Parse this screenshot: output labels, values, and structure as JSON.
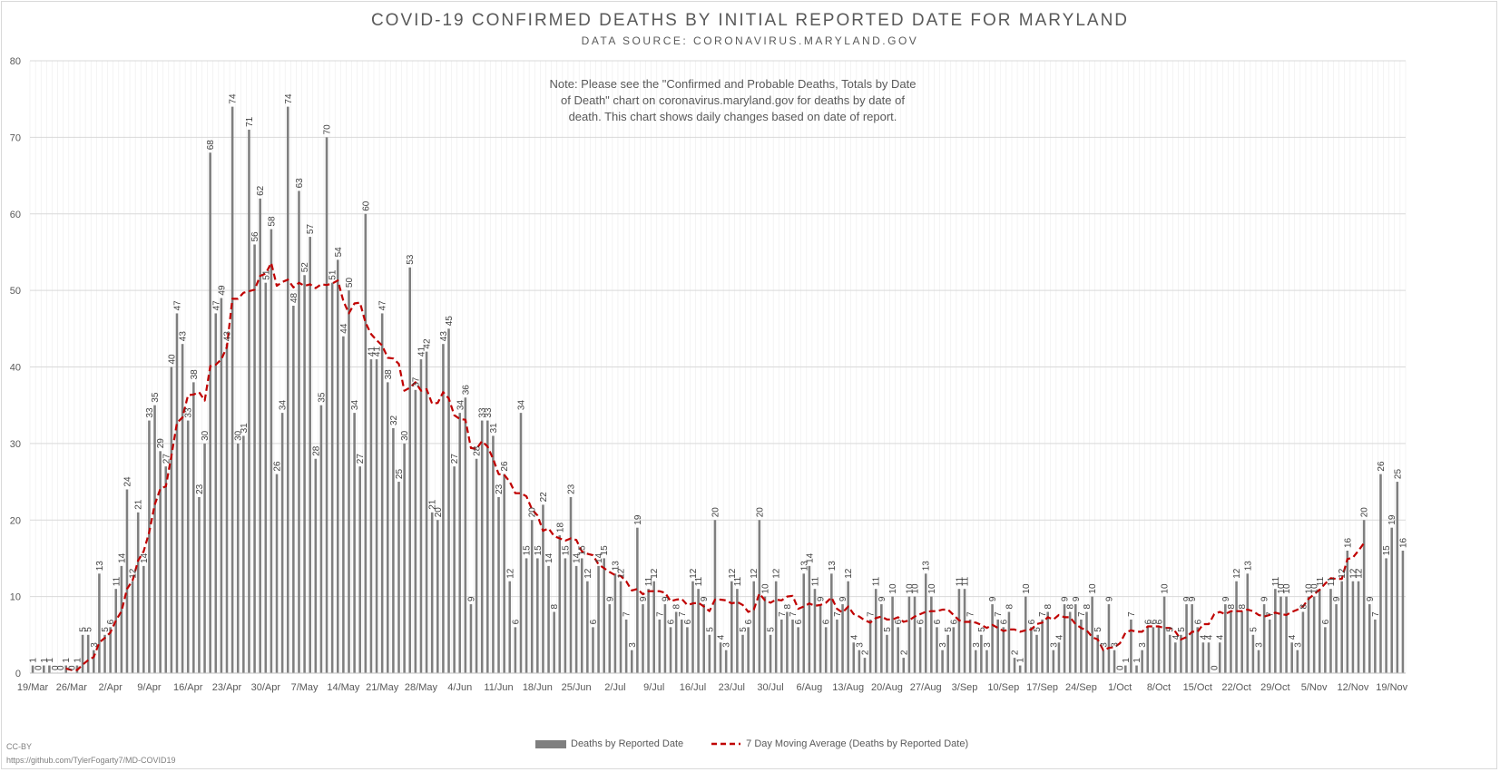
{
  "title": "COVID-19 CONFIRMED DEATHS BY INITIAL REPORTED DATE FOR MARYLAND",
  "subtitle": "DATA SOURCE: CORONAVIRUS.MARYLAND.GOV",
  "note": "Note: Please see the \"Confirmed and Probable Deaths, Totals by Date of Death\" chart on coronavirus.maryland.gov for deaths by date of death. This chart shows daily changes based on date of report.",
  "license": "CC-BY",
  "source_url": "https://github.com/TylerFogarty7/MD-COVID19",
  "colors": {
    "bar": "#7f7f7f",
    "average_line": "#c00000",
    "grid": "#d9d9d9",
    "text": "#595959"
  },
  "chart_data": {
    "type": "bar",
    "ylim": [
      0,
      80
    ],
    "yticks": [
      0,
      10,
      20,
      30,
      40,
      50,
      60,
      70,
      80
    ],
    "grid": true,
    "legend_position": "bottom",
    "x_tick_labels": [
      "19/Mar",
      "26/Mar",
      "2/Apr",
      "9/Apr",
      "16/Apr",
      "23/Apr",
      "30/Apr",
      "7/May",
      "14/May",
      "21/May",
      "28/May",
      "4/Jun",
      "11/Jun",
      "18/Jun",
      "25/Jun",
      "2/Jul",
      "9/Jul",
      "16/Jul",
      "23/Jul",
      "30/Jul",
      "6/Aug",
      "13/Aug",
      "20/Aug",
      "27/Aug",
      "3/Sep",
      "10/Sep",
      "17/Sep",
      "24/Sep",
      "1/Oct",
      "8/Oct",
      "15/Oct",
      "22/Oct",
      "29/Oct",
      "5/Nov",
      "12/Nov",
      "19/Nov"
    ],
    "series": [
      {
        "name": "Deaths by Reported Date",
        "type": "bar",
        "values": [
          1,
          0,
          1,
          1,
          0,
          0,
          1,
          0,
          1,
          5,
          5,
          3,
          13,
          5,
          6,
          11,
          14,
          24,
          12,
          21,
          14,
          33,
          35,
          29,
          27,
          40,
          47,
          43,
          33,
          38,
          23,
          30,
          68,
          47,
          49,
          43,
          74,
          30,
          31,
          71,
          56,
          62,
          51,
          58,
          26,
          34,
          74,
          48,
          63,
          52,
          57,
          28,
          35,
          70,
          51,
          54,
          44,
          50,
          34,
          27,
          60,
          41,
          41,
          47,
          38,
          32,
          25,
          30,
          53,
          37,
          41,
          42,
          21,
          20,
          43,
          45,
          27,
          34,
          36,
          9,
          28,
          33,
          33,
          31,
          23,
          26,
          12,
          6,
          34,
          15,
          20,
          15,
          22,
          14,
          8,
          18,
          15,
          23,
          14,
          15,
          12,
          6,
          14,
          15,
          9,
          13,
          12,
          7,
          3,
          19,
          9,
          11,
          12,
          7,
          9,
          6,
          8,
          7,
          6,
          12,
          11,
          9,
          5,
          20,
          4,
          3,
          12,
          11,
          5,
          6,
          12,
          20,
          10,
          5,
          12,
          7,
          8,
          7,
          6,
          13,
          14,
          11,
          9,
          6,
          13,
          7,
          9,
          12,
          4,
          3,
          2,
          7,
          11,
          9,
          5,
          10,
          6,
          2,
          10,
          10,
          6,
          13,
          10,
          6,
          3,
          5,
          6,
          11,
          11,
          7,
          3,
          5,
          3,
          9,
          7,
          6,
          8,
          2,
          1,
          10,
          6,
          5,
          7,
          8,
          3,
          4,
          9,
          8,
          9,
          7,
          8,
          10,
          5,
          3,
          9,
          3,
          0,
          1,
          7,
          1,
          3,
          6,
          6,
          6,
          10,
          5,
          4,
          5,
          9,
          9,
          6,
          4,
          4,
          0,
          4,
          9,
          8,
          12,
          8,
          13,
          5,
          3,
          9,
          7,
          11,
          10,
          10,
          4,
          3,
          8,
          10,
          10,
          11,
          6,
          11,
          9,
          12,
          16,
          12,
          12,
          20,
          9,
          7,
          26,
          15,
          19,
          25,
          16
        ]
      },
      {
        "name": "7 Day Moving Average (Deaths by Reported Date)",
        "type": "line",
        "values": [
          null,
          null,
          null,
          null,
          null,
          null,
          0.6,
          0.4,
          0.4,
          1.1,
          1.7,
          2.1,
          4.0,
          4.6,
          5.3,
          6.9,
          8.1,
          11.0,
          12.1,
          14.7,
          15.9,
          18.4,
          22.0,
          24.1,
          24.4,
          28.4,
          32.7,
          33.4,
          36.3,
          36.4,
          36.7,
          35.6,
          40.1,
          40.3,
          41.0,
          42.6,
          48.9,
          48.9,
          49.7,
          49.9,
          50.1,
          51.9,
          52.2,
          53.6,
          50.6,
          51.1,
          51.4,
          50.4,
          51.0,
          50.6,
          50.8,
          50.3,
          50.8,
          50.7,
          50.9,
          51.3,
          48.6,
          47.0,
          48.3,
          48.4,
          45.8,
          44.3,
          43.5,
          42.8,
          41.2,
          41.1,
          40.4,
          36.9,
          37.3,
          38.0,
          36.9,
          37.1,
          35.2,
          35.3,
          36.7,
          35.9,
          33.7,
          33.2,
          33.1,
          29.4,
          29.3,
          30.3,
          29.6,
          28.0,
          26.0,
          25.9,
          25.0,
          23.5,
          23.5,
          23.1,
          21.4,
          20.6,
          18.6,
          18.9,
          17.9,
          17.6,
          17.3,
          17.6,
          17.4,
          15.9,
          15.6,
          15.4,
          14.2,
          13.7,
          13.2,
          12.8,
          12.7,
          12.0,
          10.8,
          11.0,
          10.3,
          10.7,
          10.7,
          10.7,
          10.5,
          9.4,
          9.6,
          9.7,
          8.9,
          9.1,
          9.2,
          8.7,
          8.1,
          9.6,
          9.6,
          9.5,
          9.1,
          9.3,
          8.9,
          8.0,
          8.3,
          10.4,
          9.5,
          9.2,
          9.6,
          9.5,
          10.0,
          10.1,
          8.4,
          8.7,
          9.1,
          8.8,
          8.9,
          9.2,
          9.9,
          8.4,
          7.9,
          8.7,
          7.7,
          7.4,
          6.9,
          6.6,
          7.2,
          7.4,
          7.0,
          7.0,
          7.3,
          6.7,
          6.9,
          7.4,
          7.7,
          8.0,
          8.1,
          8.1,
          8.3,
          8.3,
          7.6,
          6.9,
          6.7,
          6.7,
          6.6,
          6.3,
          5.9,
          6.3,
          5.9,
          5.5,
          5.7,
          5.7,
          5.4,
          5.6,
          5.7,
          6.4,
          6.6,
          7.3,
          7.0,
          7.6,
          7.3,
          7.3,
          6.4,
          5.9,
          5.6,
          4.7,
          4.4,
          3.0,
          3.3,
          3.4,
          3.9,
          5.3,
          5.6,
          5.4,
          5.4,
          6.1,
          6.1,
          6.1,
          5.9,
          5.9,
          5.4,
          4.4,
          4.7,
          5.4,
          5.4,
          6.4,
          6.4,
          7.7,
          8.0,
          7.7,
          8.1,
          8.1,
          8.1,
          8.3,
          8.1,
          7.6,
          7.4,
          7.6,
          7.9,
          7.7,
          7.6,
          8.0,
          8.3,
          8.7,
          9.7,
          10.3,
          10.9,
          11.7,
          12.4,
          12.3,
          12.3,
          14.9,
          15.1,
          16.0,
          17.0
        ]
      }
    ]
  }
}
